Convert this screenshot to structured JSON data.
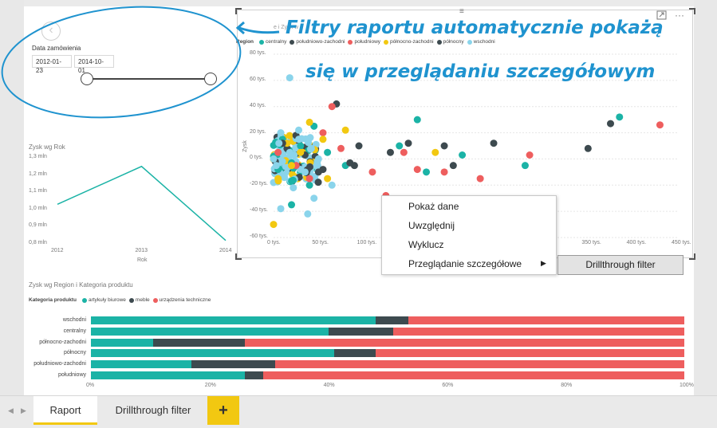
{
  "slicer": {
    "title": "Data zamówienia",
    "start_date": "2012-01-23",
    "end_date": "2014-10-01",
    "back_icon": "back-arrow-icon"
  },
  "annotation": {
    "line1": "Filtry raportu automatycznie pokażą",
    "line2": "się w przeglądaniu szczegółowym",
    "color": "#1f93cf"
  },
  "line_chart": {
    "title": "Zysk wg Rok",
    "y_ticks": [
      "1,3 mln",
      "1,2 mln",
      "1,1 mln",
      "1,0 mln",
      "0,9 mln",
      "0,8 mln"
    ],
    "x_ticks": [
      "2012",
      "2013",
      "2014"
    ],
    "x_title": "Rok",
    "color": "#1bb3a6"
  },
  "scatter": {
    "title_fragment": "e i Zysk w",
    "legend_title": "Region",
    "legend_items": [
      "centralny",
      "południowo-zachodni",
      "południowy",
      "północno-zachodni",
      "północny",
      "wschodni"
    ],
    "y_title": "Zysk",
    "y_ticks": [
      "80 tys.",
      "60 tys.",
      "40 tys.",
      "20 tys.",
      "0 tys.",
      "-20 tys.",
      "-40 tys.",
      "-60 tys."
    ],
    "x_ticks": [
      "0 tys.",
      "50 tys.",
      "100 tys.",
      "350 tys.",
      "400 tys.",
      "450 tys."
    ],
    "icons": [
      "drag-handle-icon",
      "focus-mode-icon",
      "more-options-icon"
    ]
  },
  "context_menu": {
    "items": [
      "Pokaż dane",
      "Uwzględnij",
      "Wyklucz",
      "Przeglądanie szczegółowe"
    ],
    "submenu_item": "Drillthrough filter"
  },
  "bar_chart": {
    "title": "Zysk wg Region i Kategoria produktu",
    "legend_title": "Kategoria produktu",
    "legend_items": [
      "artykuły biurowe",
      "meble",
      "urządzenia techniczne"
    ],
    "x_ticks": [
      "0%",
      "20%",
      "40%",
      "60%",
      "80%",
      "100%"
    ],
    "rows": [
      "wschodni",
      "centralny",
      "północno-zachodni",
      "północny",
      "południowo-zachodni",
      "południowy"
    ]
  },
  "tabs": {
    "items": [
      "Raport",
      "Drillthrough filter"
    ],
    "add": "+",
    "active": "Raport"
  },
  "chart_data": [
    {
      "type": "line",
      "title": "Zysk wg Rok",
      "x": [
        "2012",
        "2013",
        "2014"
      ],
      "series": [
        {
          "values": [
            1.03,
            1.25,
            0.82
          ]
        }
      ],
      "xlabel": "Rok",
      "ylabel": "",
      "ylim": [
        0.8,
        1.3
      ],
      "y_unit": "mln"
    },
    {
      "type": "scatter",
      "ylabel": "Zysk",
      "xlim": [
        0,
        450000
      ],
      "ylim": [
        -60000,
        80000
      ],
      "series": [
        {
          "name": "centralny",
          "color": "#1bb3a6",
          "points": [
            [
              0,
              2000
            ],
            [
              5000,
              -8000
            ],
            [
              10000,
              15000
            ],
            [
              20000,
              -3000
            ],
            [
              30000,
              10000
            ],
            [
              45000,
              25000
            ],
            [
              60000,
              5000
            ],
            [
              80000,
              -5000
            ],
            [
              140000,
              10000
            ],
            [
              160000,
              30000
            ],
            [
              170000,
              -10000
            ],
            [
              210000,
              3000
            ],
            [
              280000,
              -5000
            ],
            [
              385000,
              32000
            ],
            [
              20000,
              -35000
            ],
            [
              40000,
              -20000
            ]
          ]
        },
        {
          "name": "południowo-zachodni",
          "color": "#3d4a4f",
          "points": [
            [
              2000,
              -2000
            ],
            [
              15000,
              8000
            ],
            [
              35000,
              3000
            ],
            [
              55000,
              -8000
            ],
            [
              70000,
              42000
            ],
            [
              95000,
              10000
            ],
            [
              130000,
              5000
            ],
            [
              150000,
              12000
            ],
            [
              190000,
              10000
            ],
            [
              245000,
              12000
            ],
            [
              350000,
              8000
            ],
            [
              375000,
              27000
            ],
            [
              25000,
              18000
            ],
            [
              85000,
              -3000
            ]
          ]
        },
        {
          "name": "południowy",
          "color": "#ee5e5e",
          "points": [
            [
              5000,
              5000
            ],
            [
              25000,
              -5000
            ],
            [
              55000,
              20000
            ],
            [
              65000,
              40000
            ],
            [
              75000,
              8000
            ],
            [
              110000,
              -10000
            ],
            [
              125000,
              -28000
            ],
            [
              145000,
              5000
            ],
            [
              160000,
              -8000
            ],
            [
              190000,
              -10000
            ],
            [
              230000,
              -15000
            ],
            [
              285000,
              3000
            ],
            [
              430000,
              26000
            ],
            [
              40000,
              -15000
            ]
          ]
        },
        {
          "name": "północno-zachodni",
          "color": "#f2c811",
          "points": [
            [
              0,
              -50000
            ],
            [
              5000,
              -15000
            ],
            [
              15000,
              12000
            ],
            [
              30000,
              5000
            ],
            [
              40000,
              28000
            ],
            [
              55000,
              15000
            ],
            [
              60000,
              -15000
            ],
            [
              80000,
              22000
            ],
            [
              180000,
              5000
            ],
            [
              20000,
              -5000
            ]
          ]
        },
        {
          "name": "północny",
          "color": "#3d4a4f",
          "points": [
            [
              10000,
              12000
            ],
            [
              50000,
              -10000
            ],
            [
              90000,
              -5000
            ],
            [
              200000,
              -5000
            ]
          ]
        },
        {
          "name": "wschodni",
          "color": "#8ad4eb",
          "points": [
            [
              0,
              0
            ],
            [
              3000,
              -5000
            ],
            [
              6000,
              12000
            ],
            [
              8000,
              20000
            ],
            [
              12000,
              -12000
            ],
            [
              18000,
              5000
            ],
            [
              22000,
              -22000
            ],
            [
              28000,
              15000
            ],
            [
              35000,
              -10000
            ],
            [
              45000,
              -30000
            ],
            [
              50000,
              0
            ],
            [
              8000,
              -38000
            ],
            [
              18000,
              62000
            ],
            [
              28000,
              22000
            ],
            [
              38000,
              -42000
            ],
            [
              65000,
              -20000
            ],
            [
              42000,
              8000
            ]
          ]
        }
      ]
    },
    {
      "type": "bar",
      "stacked": true,
      "percent": true,
      "title": "Zysk wg Region i Kategoria produktu",
      "categories": [
        "wschodni",
        "centralny",
        "północno-zachodni",
        "północny",
        "południowo-zachodni",
        "południowy"
      ],
      "series": [
        {
          "name": "artykuły biurowe",
          "color": "#1bb3a6",
          "values": [
            48,
            40,
            10.5,
            41,
            17,
            26
          ]
        },
        {
          "name": "meble",
          "color": "#3d4a4f",
          "values": [
            5.5,
            11,
            15.5,
            7,
            14,
            3
          ]
        },
        {
          "name": "urządzenia techniczne",
          "color": "#ee5e5e",
          "values": [
            46.5,
            49,
            74,
            52,
            69,
            71
          ]
        }
      ],
      "xlim": [
        0,
        100
      ]
    }
  ]
}
